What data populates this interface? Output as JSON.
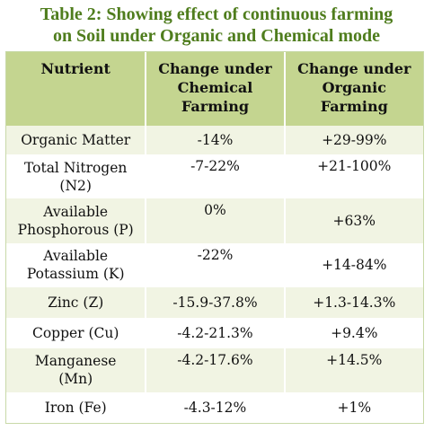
{
  "title": {
    "line1": "Table 2: Showing effect of continuous farming",
    "line2": "on Soil under Organic and Chemical mode"
  },
  "table": {
    "headers": {
      "nutrient": "Nutrient",
      "chemical_line1": "Change under",
      "chemical_line2": "Chemical",
      "chemical_line3": "Farming",
      "organic_line1": "Change under",
      "organic_line2": "Organic",
      "organic_line3": "Farming"
    },
    "rows": [
      {
        "nutrient": "Organic Matter",
        "nutrient2": "",
        "chemical": "-14%",
        "organic": "+29-99%"
      },
      {
        "nutrient": "Total Nitrogen",
        "nutrient2": "(N2)",
        "chemical": "-7-22%",
        "organic": "+21-100%"
      },
      {
        "nutrient": "Available",
        "nutrient2": "Phosphorous (P)",
        "chemical": "0%",
        "organic": "+63%"
      },
      {
        "nutrient": "Available",
        "nutrient2": "Potassium (K)",
        "chemical": "-22%",
        "organic": "+14-84%"
      },
      {
        "nutrient": "Zinc (Z)",
        "nutrient2": "",
        "chemical": "-15.9-37.8%",
        "organic": "+1.3-14.3%"
      },
      {
        "nutrient": "Copper (Cu)",
        "nutrient2": "",
        "chemical": "-4.2-21.3%",
        "organic": "+9.4%"
      },
      {
        "nutrient": "Manganese",
        "nutrient2": "(Mn)",
        "chemical": "-4.2-17.6%",
        "organic": "+14.5%"
      },
      {
        "nutrient": "Iron (Fe)",
        "nutrient2": "",
        "chemical": "-4.3-12%",
        "organic": "+1%"
      }
    ]
  }
}
